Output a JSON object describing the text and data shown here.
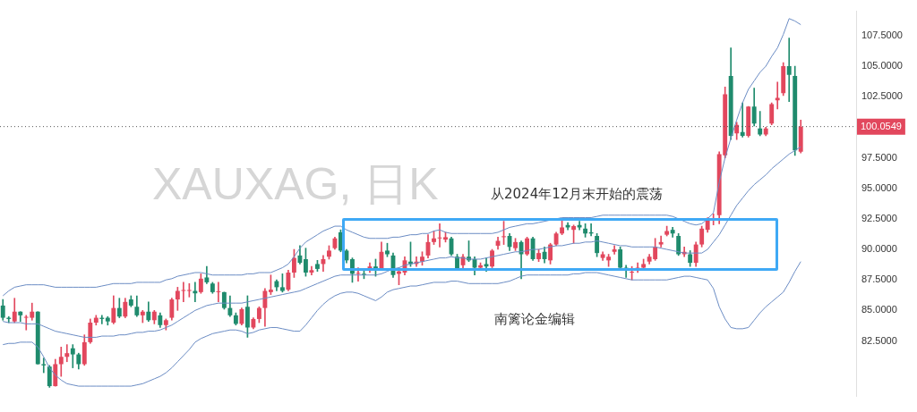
{
  "chart_data": {
    "type": "candlestick",
    "title": "XAUXAG, 日K",
    "categories": [
      null,
      null,
      null,
      null,
      null,
      null,
      null,
      null,
      null,
      null,
      null,
      null,
      null,
      null,
      null,
      null,
      null,
      null,
      null,
      null,
      null,
      null,
      null,
      null,
      null,
      null,
      null,
      null,
      null,
      null,
      null,
      null,
      null,
      null,
      null,
      null,
      null,
      null,
      null,
      null,
      null,
      null,
      null,
      null,
      null,
      null,
      null,
      null,
      null,
      null,
      null,
      null,
      null,
      null,
      null,
      null,
      null,
      null,
      null,
      null,
      null,
      null,
      null,
      null,
      null,
      null,
      null,
      null,
      null,
      null,
      null,
      null,
      null,
      null,
      null,
      null,
      null,
      null,
      null,
      null,
      null,
      null,
      null,
      null,
      null,
      null,
      null,
      null,
      null,
      null,
      null,
      null,
      null,
      null,
      null,
      null,
      null,
      null,
      null,
      null,
      null,
      null,
      null,
      null,
      null,
      null,
      null,
      null,
      null,
      null,
      null,
      null,
      null,
      null,
      null,
      null,
      null,
      null,
      null,
      null,
      null,
      null,
      null,
      null,
      null,
      null,
      null,
      null,
      null,
      null,
      null,
      null,
      null,
      null,
      null,
      null,
      null,
      null,
      null,
      null,
      null,
      null,
      null,
      null,
      null,
      null,
      null
    ],
    "ohlc": [
      [
        85.4,
        85.9,
        84.2,
        84.4
      ],
      [
        84.4,
        84.5,
        84.0,
        84.3
      ],
      [
        84.1,
        86.0,
        84.0,
        84.9
      ],
      [
        84.9,
        84.9,
        84.1,
        84.6
      ],
      [
        84.4,
        84.6,
        83.4,
        84.4
      ],
      [
        84.4,
        85.6,
        84.2,
        84.9
      ],
      [
        84.9,
        84.9,
        80.6,
        80.6
      ],
      [
        80.6,
        81.1,
        79.9,
        80.5
      ],
      [
        80.4,
        80.5,
        78.7,
        78.8
      ],
      [
        78.8,
        81.0,
        78.8,
        80.6
      ],
      [
        80.6,
        82.0,
        79.6,
        81.2
      ],
      [
        81.2,
        82.2,
        80.8,
        81.5
      ],
      [
        81.9,
        82.2,
        80.3,
        81.4
      ],
      [
        81.4,
        81.5,
        80.2,
        80.6
      ],
      [
        80.6,
        83.0,
        80.5,
        82.4
      ],
      [
        82.4,
        84.3,
        82.3,
        84.0
      ],
      [
        84.0,
        84.6,
        83.8,
        84.4
      ],
      [
        84.4,
        84.6,
        83.9,
        84.3
      ],
      [
        84.4,
        84.5,
        83.8,
        84.1
      ],
      [
        84.0,
        86.2,
        83.9,
        85.2
      ],
      [
        85.2,
        86.0,
        84.4,
        84.5
      ],
      [
        84.5,
        86.0,
        84.4,
        85.7
      ],
      [
        85.9,
        86.2,
        85.3,
        85.4
      ],
      [
        85.3,
        86.2,
        84.5,
        84.6
      ],
      [
        84.6,
        85.0,
        84.0,
        84.9
      ],
      [
        84.9,
        85.7,
        84.1,
        84.2
      ],
      [
        84.2,
        85.0,
        83.9,
        84.9
      ],
      [
        84.6,
        84.8,
        83.6,
        83.8
      ],
      [
        83.8,
        84.3,
        83.4,
        84.2
      ],
      [
        84.4,
        86.0,
        84.2,
        85.9
      ],
      [
        85.9,
        86.9,
        85.0,
        86.6
      ],
      [
        86.6,
        87.3,
        85.7,
        86.6
      ],
      [
        86.6,
        87.2,
        86.1,
        86.6
      ],
      [
        86.6,
        87.3,
        85.7,
        86.4
      ],
      [
        86.5,
        88.0,
        86.4,
        87.6
      ],
      [
        87.7,
        88.6,
        87.2,
        87.3
      ],
      [
        87.2,
        87.3,
        86.4,
        86.5
      ],
      [
        86.5,
        87.3,
        85.7,
        86.5
      ],
      [
        86.5,
        86.5,
        85.1,
        85.2
      ],
      [
        85.2,
        86.2,
        84.5,
        84.6
      ],
      [
        84.6,
        84.8,
        83.8,
        83.9
      ],
      [
        83.9,
        85.2,
        83.8,
        85.1
      ],
      [
        85.3,
        86.2,
        82.8,
        83.6
      ],
      [
        83.6,
        84.4,
        83.5,
        84.3
      ],
      [
        84.3,
        85.3,
        84.0,
        85.2
      ],
      [
        85.2,
        86.8,
        83.7,
        86.6
      ],
      [
        86.5,
        87.9,
        86.3,
        86.7
      ],
      [
        87.4,
        87.5,
        86.6,
        86.9
      ],
      [
        86.9,
        88.0,
        86.5,
        86.6
      ],
      [
        86.7,
        88.3,
        86.6,
        88.1
      ],
      [
        88.1,
        90.0,
        87.7,
        89.3
      ],
      [
        89.5,
        90.3,
        88.8,
        88.9
      ],
      [
        89.2,
        90.1,
        87.8,
        88.1
      ],
      [
        88.1,
        88.6,
        87.9,
        88.3
      ],
      [
        88.8,
        89.1,
        88.2,
        88.4
      ],
      [
        88.8,
        89.5,
        88.2,
        89.2
      ],
      [
        89.4,
        90.3,
        89.2,
        89.9
      ],
      [
        90.1,
        91.0,
        90.0,
        90.9
      ],
      [
        91.4,
        91.6,
        89.8,
        89.9
      ],
      [
        89.9,
        90.0,
        88.9,
        89.1
      ],
      [
        89.2,
        89.3,
        87.3,
        88.0
      ],
      [
        88.0,
        88.5,
        87.4,
        88.0
      ],
      [
        88.0,
        88.3,
        87.6,
        87.9
      ],
      [
        88.4,
        88.9,
        88.1,
        88.6
      ],
      [
        88.6,
        89.2,
        87.8,
        88.4
      ],
      [
        88.4,
        90.6,
        88.3,
        89.8
      ],
      [
        89.9,
        90.5,
        89.4,
        89.6
      ],
      [
        89.5,
        89.7,
        87.7,
        87.9
      ],
      [
        88.0,
        88.5,
        87.1,
        88.2
      ],
      [
        88.1,
        89.4,
        87.9,
        89.1
      ],
      [
        89.0,
        90.6,
        88.6,
        88.8
      ],
      [
        88.8,
        89.4,
        88.6,
        89.0
      ],
      [
        89.0,
        89.8,
        88.7,
        89.4
      ],
      [
        89.5,
        91.2,
        89.3,
        90.6
      ],
      [
        90.6,
        91.5,
        90.4,
        90.9
      ],
      [
        90.9,
        92.1,
        90.2,
        90.9
      ],
      [
        90.8,
        91.4,
        90.6,
        91.0
      ],
      [
        90.9,
        91.0,
        89.5,
        89.6
      ],
      [
        89.4,
        89.6,
        88.3,
        88.4
      ],
      [
        88.7,
        89.6,
        88.4,
        89.4
      ],
      [
        89.4,
        90.7,
        89.0,
        89.1
      ],
      [
        89.2,
        89.4,
        87.9,
        88.5
      ],
      [
        88.5,
        88.9,
        88.3,
        88.7
      ],
      [
        88.8,
        89.3,
        88.2,
        88.6
      ],
      [
        88.6,
        90.0,
        88.5,
        89.9
      ],
      [
        90.3,
        91.0,
        90.0,
        90.7
      ],
      [
        91.0,
        92.3,
        90.4,
        91.0
      ],
      [
        91.1,
        91.3,
        89.9,
        90.2
      ],
      [
        90.1,
        90.9,
        89.9,
        90.6
      ],
      [
        90.6,
        90.7,
        87.6,
        89.6
      ],
      [
        89.6,
        91.0,
        89.5,
        90.9
      ],
      [
        90.9,
        91.0,
        89.1,
        89.2
      ],
      [
        89.2,
        90.0,
        89.0,
        89.7
      ],
      [
        89.8,
        90.2,
        88.9,
        89.2
      ],
      [
        89.1,
        90.5,
        88.8,
        90.4
      ],
      [
        90.4,
        91.4,
        90.3,
        91.3
      ],
      [
        91.3,
        92.5,
        91.2,
        91.8
      ],
      [
        92.0,
        92.2,
        91.6,
        91.8
      ],
      [
        91.6,
        92.0,
        90.5,
        91.9
      ],
      [
        92.0,
        92.3,
        91.6,
        91.8
      ],
      [
        91.7,
        92.1,
        91.0,
        91.3
      ],
      [
        91.4,
        92.1,
        91.1,
        91.3
      ],
      [
        91.1,
        91.3,
        89.4,
        89.7
      ],
      [
        89.3,
        89.8,
        89.1,
        89.6
      ],
      [
        89.1,
        89.6,
        88.6,
        89.4
      ],
      [
        89.8,
        90.3,
        89.6,
        90.0
      ],
      [
        90.0,
        90.2,
        88.4,
        88.5
      ],
      [
        88.5,
        88.7,
        87.7,
        88.4
      ],
      [
        88.1,
        88.6,
        87.5,
        88.1
      ],
      [
        88.3,
        88.9,
        88.1,
        88.5
      ],
      [
        88.5,
        89.2,
        88.3,
        88.8
      ],
      [
        89.0,
        89.6,
        88.8,
        89.4
      ],
      [
        89.2,
        90.9,
        89.1,
        90.2
      ],
      [
        90.4,
        91.1,
        90.2,
        90.6
      ],
      [
        91.2,
        91.9,
        91.1,
        91.5
      ],
      [
        91.6,
        91.8,
        91.0,
        91.3
      ],
      [
        91.1,
        91.3,
        89.5,
        89.6
      ],
      [
        89.6,
        90.2,
        89.4,
        89.8
      ],
      [
        89.6,
        89.9,
        88.6,
        88.9
      ],
      [
        88.9,
        90.6,
        88.6,
        90.4
      ],
      [
        90.4,
        91.9,
        90.2,
        91.7
      ],
      [
        91.6,
        92.6,
        91.4,
        92.4
      ],
      [
        92.4,
        92.9,
        92.0,
        92.5
      ],
      [
        92.8,
        98.0,
        92.1,
        97.8
      ],
      [
        97.7,
        103.3,
        97.5,
        102.7
      ],
      [
        104.2,
        106.5,
        99.0,
        99.3
      ],
      [
        99.5,
        100.4,
        99.0,
        100.2
      ],
      [
        99.6,
        102.0,
        99.2,
        99.3
      ],
      [
        99.3,
        101.7,
        99.2,
        101.7
      ],
      [
        101.7,
        103.2,
        100.1,
        100.3
      ],
      [
        99.9,
        101.3,
        99.3,
        99.4
      ],
      [
        99.4,
        100.0,
        99.3,
        99.9
      ],
      [
        100.3,
        102.0,
        100.2,
        101.9
      ],
      [
        102.2,
        103.7,
        101.5,
        102.4
      ],
      [
        102.8,
        105.3,
        102.6,
        105.0
      ],
      [
        105.0,
        107.3,
        102.1,
        104.3
      ],
      [
        104.2,
        105.0,
        97.7,
        98.1
      ],
      [
        98.0,
        100.6,
        97.9,
        100.0549
      ],
      null,
      null,
      null,
      null,
      null,
      null,
      null,
      null,
      null
    ],
    "colors": [
      "#1f8b6d",
      "#1f8b6d",
      "#e2475d",
      "#1f8b6d",
      "#e2475d",
      "#e2475d",
      "#1f8b6d",
      "#1f8b6d",
      "#1f8b6d",
      "#e2475d",
      "#e2475d",
      "#e2475d",
      "#1f8b6d",
      "#1f8b6d",
      "#e2475d",
      "#e2475d",
      "#e2475d",
      "#1f8b6d",
      "#1f8b6d",
      "#e2475d",
      "#1f8b6d",
      "#e2475d",
      "#1f8b6d",
      "#1f8b6d",
      "#e2475d",
      "#1f8b6d",
      "#e2475d",
      "#1f8b6d",
      "#e2475d",
      "#e2475d",
      "#e2475d",
      "#e2475d",
      "#e2475d",
      "#1f8b6d",
      "#e2475d",
      "#1f8b6d",
      "#1f8b6d",
      "#e2475d",
      "#1f8b6d",
      "#1f8b6d",
      "#1f8b6d",
      "#e2475d",
      "#1f8b6d",
      "#e2475d",
      "#e2475d",
      "#e2475d",
      "#e2475d",
      "#1f8b6d",
      "#1f8b6d",
      "#e2475d",
      "#e2475d",
      "#1f8b6d",
      "#1f8b6d",
      "#e2475d",
      "#1f8b6d",
      "#e2475d",
      "#e2475d",
      "#e2475d",
      "#1f8b6d",
      "#1f8b6d",
      "#1f8b6d",
      "#e2475d",
      "#1f8b6d",
      "#e2475d",
      "#1f8b6d",
      "#e2475d",
      "#1f8b6d",
      "#1f8b6d",
      "#e2475d",
      "#e2475d",
      "#1f8b6d",
      "#e2475d",
      "#e2475d",
      "#e2475d",
      "#e2475d",
      "#e2475d",
      "#e2475d",
      "#1f8b6d",
      "#1f8b6d",
      "#e2475d",
      "#1f8b6d",
      "#1f8b6d",
      "#e2475d",
      "#1f8b6d",
      "#e2475d",
      "#e2475d",
      "#e2475d",
      "#1f8b6d",
      "#e2475d",
      "#1f8b6d",
      "#e2475d",
      "#1f8b6d",
      "#e2475d",
      "#1f8b6d",
      "#e2475d",
      "#e2475d",
      "#e2475d",
      "#1f8b6d",
      "#e2475d",
      "#1f8b6d",
      "#1f8b6d",
      "#1f8b6d",
      "#1f8b6d",
      "#e2475d",
      "#e2475d",
      "#e2475d",
      "#1f8b6d",
      "#1f8b6d",
      "#e2475d",
      "#e2475d",
      "#e2475d",
      "#e2475d",
      "#e2475d",
      "#e2475d",
      "#e2475d",
      "#1f8b6d",
      "#1f8b6d",
      "#e2475d",
      "#1f8b6d",
      "#e2475d",
      "#e2475d",
      "#e2475d",
      "#e2475d",
      "#e2475d",
      "#e2475d",
      "#1f8b6d",
      "#e2475d",
      "#1f8b6d",
      "#e2475d",
      "#1f8b6d",
      "#1f8b6d",
      "#e2475d",
      "#e2475d",
      "#e2475d",
      "#e2475d",
      "#1f8b6d",
      "#1f8b6d",
      "#e2475d",
      null,
      null,
      null,
      null,
      null,
      null,
      null,
      null,
      null
    ],
    "series": [
      {
        "type": "line",
        "color": "#6b8cc4",
        "values": [
          86.2,
          86.6,
          86.9,
          87.0,
          87.1,
          87.1,
          87.1,
          87.1,
          87.0,
          86.9,
          86.9,
          86.9,
          86.9,
          86.9,
          86.9,
          86.9,
          86.9,
          87.0,
          87.1,
          87.2,
          87.2,
          87.2,
          87.2,
          87.3,
          87.3,
          87.3,
          87.3,
          87.3,
          87.5,
          87.6,
          87.8,
          87.9,
          88.0,
          88.1,
          88.1,
          88.0,
          87.9,
          87.9,
          87.9,
          87.9,
          87.9,
          87.9,
          88.0,
          88.0,
          88.1,
          88.1,
          88.1,
          88.3,
          88.5,
          88.8,
          89.4,
          90.1,
          90.6,
          90.9,
          91.2,
          91.5,
          91.7,
          91.9,
          91.9,
          91.6,
          91.4,
          91.2,
          91.0,
          90.9,
          90.9,
          90.9,
          90.9,
          91.0,
          91.0,
          91.1,
          91.2,
          91.2,
          91.3,
          91.3,
          91.5,
          91.6,
          91.4,
          91.3,
          91.3,
          91.3,
          91.3,
          91.3,
          91.3,
          91.3,
          91.3,
          91.4,
          91.6,
          91.8,
          91.9,
          92.0,
          92.1,
          92.1,
          92.2,
          92.3,
          92.4,
          92.5,
          92.6,
          92.6,
          92.6,
          92.6,
          92.6,
          92.6,
          92.7,
          92.8,
          92.8,
          92.8,
          92.8,
          92.8,
          92.8,
          92.8,
          92.8,
          92.8,
          92.8,
          92.8,
          92.8,
          92.7,
          92.5,
          92.3,
          92.1,
          92.0,
          92.1,
          92.5,
          93.0,
          95.5,
          97.5,
          99.1,
          100.6,
          102.0,
          103.1,
          103.8,
          104.5,
          105.0,
          105.8,
          106.5,
          107.6,
          108.9,
          108.7,
          108.4,
          null,
          null,
          null,
          null,
          null,
          null,
          null,
          null,
          null
        ]
      },
      {
        "type": "line",
        "color": "#6b8cc4",
        "values": [
          84.1,
          84.0,
          84.0,
          84.0,
          83.9,
          83.9,
          83.9,
          83.7,
          83.5,
          83.3,
          83.2,
          83.1,
          83.0,
          82.9,
          82.8,
          82.8,
          82.8,
          82.9,
          82.9,
          82.9,
          83.0,
          83.0,
          83.1,
          83.2,
          83.2,
          83.3,
          83.3,
          83.4,
          83.6,
          83.8,
          84.1,
          84.4,
          84.7,
          85.0,
          85.2,
          85.4,
          85.5,
          85.6,
          85.6,
          85.6,
          85.6,
          85.6,
          85.7,
          85.8,
          85.9,
          86.0,
          86.1,
          86.2,
          86.3,
          86.4,
          86.5,
          86.6,
          86.8,
          87.0,
          87.2,
          87.4,
          87.6,
          87.8,
          87.9,
          87.9,
          87.9,
          87.9,
          87.9,
          87.9,
          87.9,
          88.0,
          88.2,
          88.4,
          88.5,
          88.7,
          88.8,
          88.9,
          89.0,
          89.1,
          89.2,
          89.3,
          89.3,
          89.4,
          89.3,
          89.3,
          89.2,
          89.2,
          89.2,
          89.3,
          89.4,
          89.5,
          89.6,
          89.7,
          89.8,
          89.8,
          89.9,
          90.0,
          90.0,
          90.1,
          90.2,
          90.3,
          90.3,
          90.4,
          90.5,
          90.5,
          90.6,
          90.6,
          90.7,
          90.6,
          90.5,
          90.4,
          90.3,
          90.3,
          90.2,
          90.2,
          90.2,
          90.2,
          90.2,
          90.1,
          90.0,
          89.9,
          89.8,
          89.7,
          89.7,
          89.7,
          89.7,
          90.0,
          90.6,
          91.2,
          92.0,
          92.8,
          93.6,
          94.2,
          94.8,
          95.3,
          95.7,
          96.1,
          96.6,
          97.0,
          97.4,
          97.8,
          98.1,
          98.4,
          null,
          null,
          null,
          null,
          null,
          null,
          null,
          null,
          null
        ]
      },
      {
        "type": "line",
        "color": "#6b8cc4",
        "values": [
          82.2,
          82.3,
          82.3,
          82.4,
          82.4,
          82.4,
          82.0,
          81.2,
          80.3,
          79.7,
          79.3,
          79.0,
          78.9,
          78.8,
          78.8,
          78.8,
          78.8,
          78.8,
          78.8,
          78.8,
          78.8,
          78.8,
          78.8,
          78.9,
          79.0,
          79.2,
          79.4,
          79.6,
          79.9,
          80.3,
          80.8,
          81.3,
          81.8,
          82.4,
          82.7,
          82.9,
          83.1,
          83.2,
          83.3,
          83.4,
          83.4,
          83.3,
          83.1,
          83.2,
          83.4,
          83.5,
          83.6,
          83.6,
          83.5,
          83.4,
          83.3,
          83.3,
          83.8,
          84.4,
          85.0,
          85.5,
          85.9,
          86.2,
          86.4,
          86.5,
          86.5,
          86.4,
          86.2,
          86.0,
          85.8,
          86.1,
          86.5,
          86.7,
          86.8,
          86.9,
          87.0,
          87.0,
          87.1,
          87.2,
          87.3,
          87.3,
          87.3,
          87.4,
          87.4,
          87.3,
          87.2,
          87.2,
          87.2,
          87.2,
          87.2,
          87.2,
          87.3,
          87.4,
          87.6,
          87.8,
          87.9,
          87.9,
          87.9,
          87.9,
          87.9,
          87.9,
          87.9,
          87.9,
          88.0,
          88.0,
          88.1,
          88.1,
          88.1,
          88.0,
          87.9,
          87.8,
          87.7,
          87.6,
          87.5,
          87.5,
          87.5,
          87.5,
          87.5,
          87.5,
          87.5,
          87.6,
          87.7,
          87.8,
          87.8,
          87.7,
          87.6,
          87.5,
          86.8,
          85.3,
          84.3,
          83.6,
          83.5,
          83.5,
          83.6,
          84.2,
          84.8,
          85.3,
          85.7,
          86.1,
          86.5,
          87.3,
          88.2,
          89.0,
          null,
          null,
          null,
          null,
          null,
          null,
          null,
          null,
          null
        ]
      }
    ],
    "ylim": [
      78,
      109.5
    ],
    "yticks": [
      {
        "value": 82.5,
        "label": "82.5000"
      },
      {
        "value": 85,
        "label": "85.0000"
      },
      {
        "value": 87.5,
        "label": "87.5000"
      },
      {
        "value": 90,
        "label": "90.0000"
      },
      {
        "value": 92.5,
        "label": "92.5000"
      },
      {
        "value": 95,
        "label": "95.0000"
      },
      {
        "value": 97.5,
        "label": "97.5000"
      },
      {
        "value": 102.5,
        "label": "102.5000"
      },
      {
        "value": 105,
        "label": "105.0000"
      },
      {
        "value": 107.5,
        "label": "107.5000"
      }
    ],
    "ref_lines": [
      {
        "axis": "y",
        "value": 100.0549,
        "label": "100.0549",
        "color": "#555555",
        "line_style": "dotted"
      }
    ],
    "annotations": [
      "从2024年12月末开始的震荡",
      "南篱论金编辑"
    ],
    "tick_labels": "y"
  }
}
